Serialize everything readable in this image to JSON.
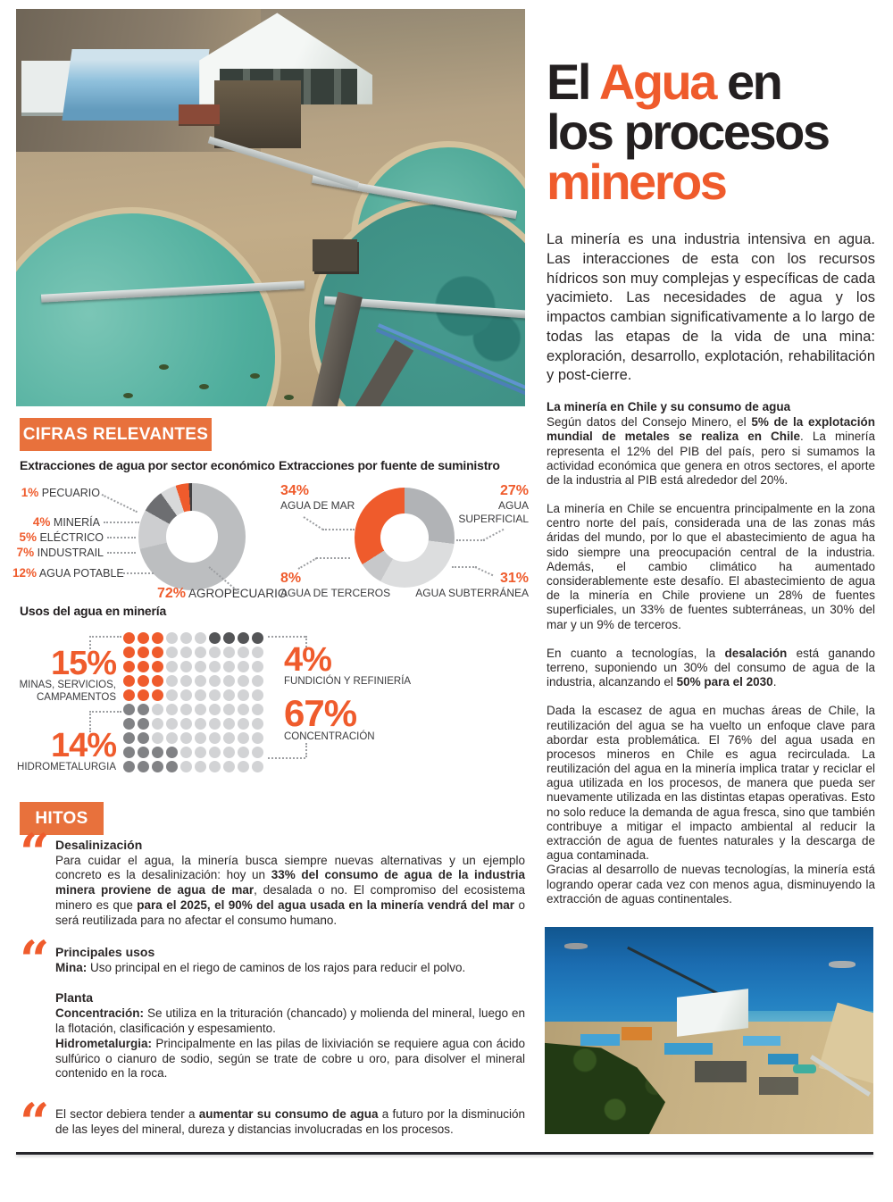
{
  "colors": {
    "accent": "#ef5b2c",
    "box_orange": "#e8713c",
    "ink": "#231f20",
    "body_text": "#2b2727",
    "leader_gray": "#9d9fa2"
  },
  "page": {
    "boxes": {
      "cifras": "CIFRAS RELEVANTES",
      "hitos": "HITOS"
    }
  },
  "title": {
    "pre": "El ",
    "hl1": "Agua",
    "post": " en",
    "line2": "los procesos",
    "hl2": "mineros"
  },
  "intro": "La minería es una industria intensiva en agua. Las interacciones de esta con los recursos hídricos son muy complejas y específicas de cada yacimieto. Las necesidades de agua y los impactos cambian significativamente a lo largo de todas las etapas de la vida de una mina: exploración, desarrollo, explotación, rehabilitación y post-cierre.",
  "article": {
    "sub1": "La minería en Chile y su consumo de agua",
    "p1": [
      {
        "t": "Según datos del Consejo Minero, el "
      },
      {
        "t": "5% de la explotación mundial de metales se realiza en Chile",
        "b": true
      },
      {
        "t": ". La minería representa el 12% del PIB del país, pero si sumamos la actividad económica que genera en otros sectores, el aporte de la industria al PIB está alrededor del 20%."
      }
    ],
    "p2": [
      {
        "t": "La minería en Chile se encuentra principalmente en la zona centro norte del país, considerada una de las zonas más áridas del mundo, por lo que el abastecimiento de agua ha sido siempre una preocupación central de la industria. Además, el cambio climático ha aumentado considerablemente este desafío. El abastecimiento de agua de la minería en Chile proviene un 28% de fuentes superficiales, un 33% de fuentes subterráneas, un 30% del mar y un 9% de terceros."
      }
    ],
    "p3": [
      {
        "t": "En cuanto a tecnologías, la "
      },
      {
        "t": "desalación",
        "b": true
      },
      {
        "t": " está ganando terreno, suponiendo un 30% del consumo de agua de la industria, alcanzando el "
      },
      {
        "t": "50% para el 2030",
        "b": true
      },
      {
        "t": "."
      }
    ],
    "p4": [
      {
        "t": "Dada la escasez de agua en muchas áreas de Chile, la reutilización del agua se ha vuelto un enfoque clave para abordar esta problemática. El 76% del agua usada en procesos mineros en Chile es agua recirculada. La reutilización del agua en la minería implica tratar y reciclar el agua utilizada en los procesos, de manera que pueda ser nuevamente utilizada en las distintas etapas operativas. Esto no solo reduce la demanda de agua fresca, sino que también contribuye a mitigar el impacto ambiental al reducir la extracción de agua de fuentes naturales y la descarga de agua contaminada."
      }
    ],
    "p5": [
      {
        "t": "Gracias al desarrollo de nuevas tecnologías, la minería está logrando operar cada vez con menos agua, disminuyendo la extracción de aguas continentales."
      }
    ]
  },
  "hitos": {
    "q1_head": "Desalinización",
    "q1": [
      {
        "t": "Para cuidar el agua, la minería busca siempre nuevas alternativas y un ejemplo concreto es la desalinización: hoy un "
      },
      {
        "t": "33% del consumo de agua de la industria minera proviene de agua de mar",
        "b": true
      },
      {
        "t": ", desalada o no. El compromiso del ecosistema minero es que "
      },
      {
        "t": "para el 2025, el 90% del agua usada en la minería vendrá del mar",
        "b": true
      },
      {
        "t": " o será reutilizada para no afectar el consumo humano."
      }
    ],
    "q2_head": "Principales usos",
    "q2_p1": [
      {
        "t": "Mina: ",
        "b": true
      },
      {
        "t": "Uso principal en el riego de caminos de los rajos para reducir el polvo."
      }
    ],
    "q2_planta": "Planta",
    "q2_p2": [
      {
        "t": "Concentración: ",
        "b": true
      },
      {
        "t": "Se utiliza en la trituración (chancado) y molienda del mineral, luego en la flotación, clasificación y espesamiento."
      }
    ],
    "q2_p3": [
      {
        "t": "Hidrometalurgia: ",
        "b": true
      },
      {
        "t": "Principalmente en las pilas de lixiviación se requiere agua con ácido sulfúrico o cianuro de sodio, según se trate de cobre u oro, para disolver el mineral contenido en la roca."
      }
    ],
    "q3": [
      {
        "t": "El sector debiera tender a "
      },
      {
        "t": "aumentar su consumo de agua",
        "b": true
      },
      {
        "t": " a futuro por la disminución de las leyes del mineral, dureza y distancias involucradas en los procesos."
      }
    ]
  },
  "charts": {
    "sector_title": "Extracciones de agua por sector económico",
    "fuente_title": "Extracciones por fuente de suministro",
    "usos_title": "Usos del agua en minería"
  },
  "chart_data": [
    {
      "type": "pie",
      "variant": "donut",
      "title": "Extracciones de agua por sector económico",
      "segments": [
        {
          "label": "AGROPECUARIO",
          "pct": "72%",
          "value": 72,
          "color": "#bcbec0"
        },
        {
          "label": "AGUA POTABLE",
          "pct": "12%",
          "value": 12,
          "color": "#cdced0"
        },
        {
          "label": "INDUSTRAIL",
          "pct": "7%",
          "value": 7,
          "color": "#6d6e71"
        },
        {
          "label": "ELÉCTRICO",
          "pct": "5%",
          "value": 5,
          "color": "#d8d9da"
        },
        {
          "label": "MINERÍA",
          "pct": "4%",
          "value": 4,
          "color": "#ef5b2c"
        },
        {
          "label": "PECUARIO",
          "pct": "1%",
          "value": 1,
          "color": "#414042"
        }
      ]
    },
    {
      "type": "pie",
      "variant": "donut",
      "title": "Extracciones por fuente de suministro",
      "segments": [
        {
          "label": "AGUA SUPERFICIAL",
          "pct": "27%",
          "value": 27,
          "color": "#b1b3b6"
        },
        {
          "label": "AGUA SUBTERRÁNEA",
          "pct": "31%",
          "value": 31,
          "color": "#dcddde"
        },
        {
          "label": "AGUA DE TERCEROS",
          "pct": "8%",
          "value": 8,
          "color": "#c7c8ca"
        },
        {
          "label": "AGUA DE MAR",
          "pct": "34%",
          "value": 34,
          "color": "#ef5b2c"
        }
      ]
    },
    {
      "type": "waffle",
      "title": "Usos del agua en minería",
      "rows": [
        "oooxxxffff",
        "oooxxxxxxx",
        "oooxxxxxxx",
        "oooxxxxxxx",
        "oooxxxxxxx",
        "hhxxxxxxxx",
        "hhxxxxxxxx",
        "hhxxxxxxxx",
        "hhhhxxxxxx",
        "hhhhxxxxxx"
      ],
      "palette": {
        "o": "#ef5b2c",
        "x": "#d2d3d5",
        "h": "#818285",
        "f": "#545557"
      },
      "categories": [
        {
          "pct": "15%",
          "value": 15,
          "label_lines": [
            "MINAS, SERVICIOS,",
            "CAMPAMENTOS"
          ]
        },
        {
          "pct": "14%",
          "value": 14,
          "label_lines": [
            "HIDROMETALURGIA"
          ]
        },
        {
          "pct": "4%",
          "value": 4,
          "label_lines": [
            "FUNDICIÓN Y REFINIERÍA"
          ]
        },
        {
          "pct": "67%",
          "value": 67,
          "label_lines": [
            "CONCENTRACIÓN"
          ]
        }
      ]
    }
  ]
}
